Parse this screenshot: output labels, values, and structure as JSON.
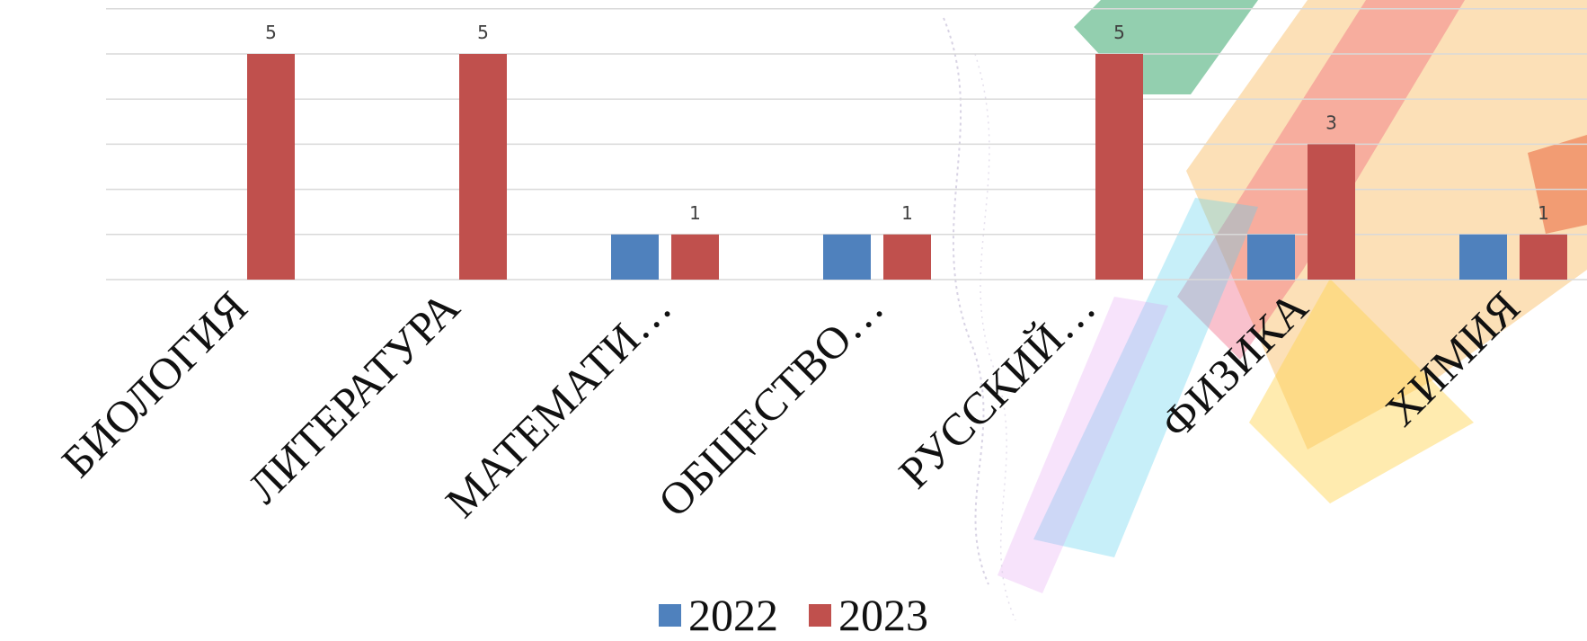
{
  "chart_data": {
    "type": "bar",
    "categories": [
      "БИОЛОГИЯ",
      "ЛИТЕРАТУРА",
      "МАТЕМАТИ…",
      "ОБЩЕСТВО…",
      "РУССКИЙ…",
      "ФИЗИКА",
      "ХИМИЯ"
    ],
    "series": [
      {
        "name": "2022",
        "color": "#4f81bd",
        "values": [
          0,
          0,
          1,
          1,
          0,
          1,
          1
        ]
      },
      {
        "name": "2023",
        "color": "#c0504d",
        "values": [
          5,
          5,
          1,
          1,
          5,
          3,
          1
        ]
      }
    ],
    "data_labels": {
      "2023": [
        5,
        5,
        1,
        1,
        5,
        3,
        1
      ]
    },
    "ylim": [
      0,
      6
    ],
    "grid": true,
    "legend": "bottom-center"
  }
}
